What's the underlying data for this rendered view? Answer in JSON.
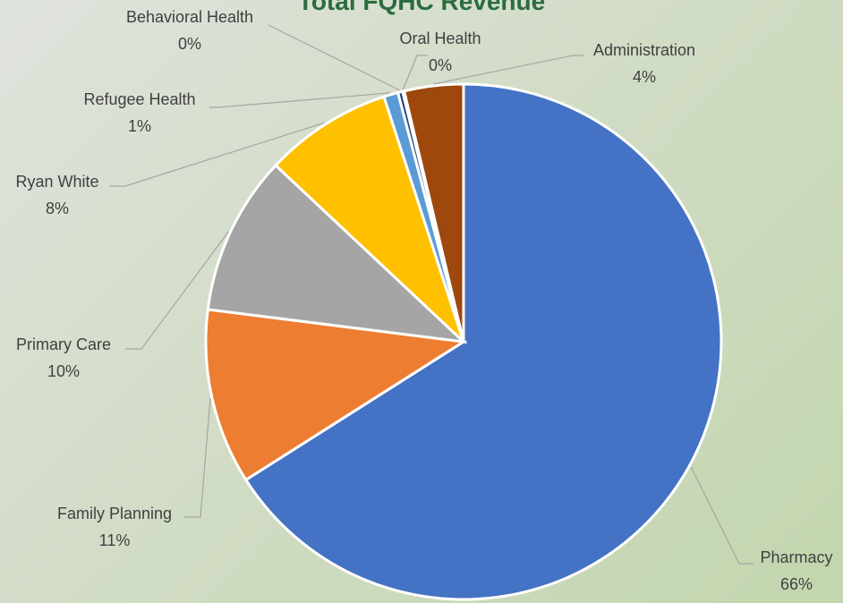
{
  "chart_data": {
    "type": "pie",
    "title": "Total FQHC Revenue",
    "slices": [
      {
        "label": "Pharmacy",
        "value": 66,
        "percent_label": "66%",
        "color": "#4472c4"
      },
      {
        "label": "Family Planning",
        "value": 11,
        "percent_label": "11%",
        "color": "#ed7d31"
      },
      {
        "label": "Primary Care",
        "value": 10,
        "percent_label": "10%",
        "color": "#a5a5a5"
      },
      {
        "label": "Ryan White",
        "value": 8,
        "percent_label": "8%",
        "color": "#ffc000"
      },
      {
        "label": "Refugee Health",
        "value": 0.9,
        "percent_label": "1%",
        "color": "#5b9bd5"
      },
      {
        "label": "Behavioral Health",
        "value": 0.3,
        "percent_label": "0%",
        "color": "#264478"
      },
      {
        "label": "Oral Health",
        "value": 0.1,
        "percent_label": "0%",
        "color": "#636363"
      },
      {
        "label": "Administration",
        "value": 3.7,
        "percent_label": "4%",
        "color": "#9e480e"
      }
    ],
    "start_angle_deg": 0,
    "direction": "clockwise"
  }
}
